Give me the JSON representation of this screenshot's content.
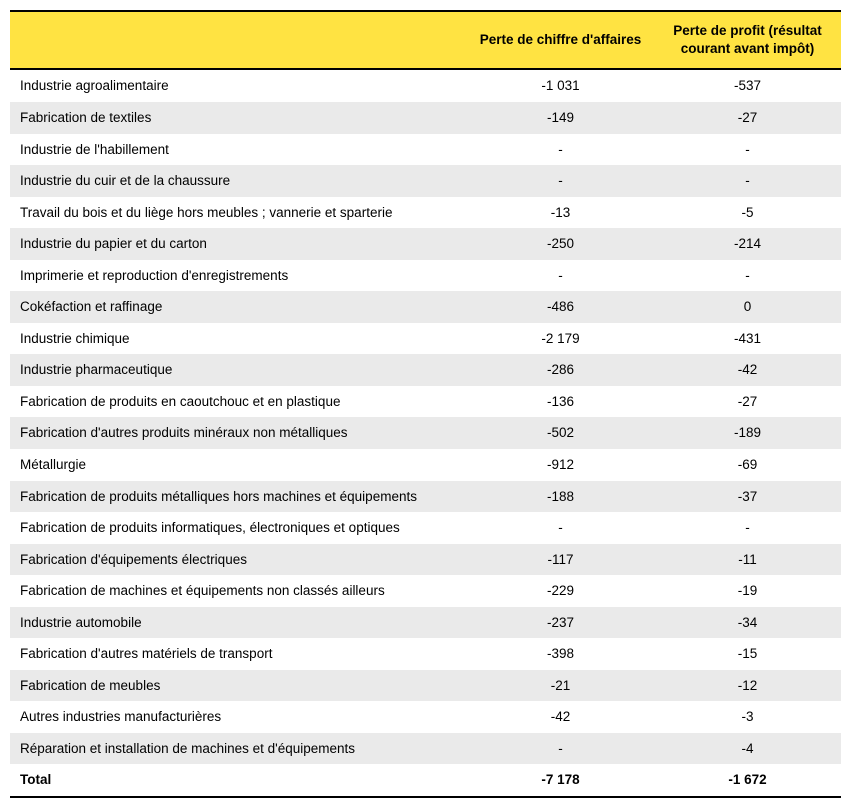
{
  "table": {
    "type": "table",
    "header_bg": "#ffe342",
    "alt_row_bg": "#eaeaea",
    "border_color": "#000000",
    "font_family": "Arial",
    "font_size_pt": 10,
    "columns": [
      {
        "key": "label",
        "header": "",
        "align": "left",
        "width_pct": 55
      },
      {
        "key": "perte_ca",
        "header": "Perte de chiffre d'affaires",
        "align": "center",
        "width_pct": 22.5
      },
      {
        "key": "perte_profit",
        "header": "Perte de profit\n(résultat courant\navant impôt)",
        "align": "center",
        "width_pct": 22.5
      }
    ],
    "rows": [
      {
        "label": "Industrie agroalimentaire",
        "perte_ca": "-1 031",
        "perte_profit": "-537",
        "alt": false
      },
      {
        "label": "Fabrication de textiles",
        "perte_ca": "-149",
        "perte_profit": "-27",
        "alt": true
      },
      {
        "label": "Industrie de l'habillement",
        "perte_ca": "-",
        "perte_profit": "-",
        "alt": false
      },
      {
        "label": "Industrie du cuir et de la chaussure",
        "perte_ca": "-",
        "perte_profit": "-",
        "alt": true
      },
      {
        "label": "Travail du bois et du liège hors meubles ; vannerie et sparterie",
        "perte_ca": "-13",
        "perte_profit": "-5",
        "alt": false
      },
      {
        "label": "Industrie du papier et du carton",
        "perte_ca": "-250",
        "perte_profit": "-214",
        "alt": true
      },
      {
        "label": "Imprimerie et reproduction d'enregistrements",
        "perte_ca": "-",
        "perte_profit": "-",
        "alt": false
      },
      {
        "label": "Cokéfaction et raffinage",
        "perte_ca": "-486",
        "perte_profit": "0",
        "alt": true
      },
      {
        "label": "Industrie chimique",
        "perte_ca": "-2 179",
        "perte_profit": "-431",
        "alt": false
      },
      {
        "label": "Industrie pharmaceutique",
        "perte_ca": "-286",
        "perte_profit": "-42",
        "alt": true
      },
      {
        "label": "Fabrication de produits en caoutchouc et en plastique",
        "perte_ca": "-136",
        "perte_profit": "-27",
        "alt": false
      },
      {
        "label": "Fabrication d'autres produits minéraux non métalliques",
        "perte_ca": "-502",
        "perte_profit": "-189",
        "alt": true
      },
      {
        "label": "Métallurgie",
        "perte_ca": "-912",
        "perte_profit": "-69",
        "alt": false
      },
      {
        "label": "Fabrication de produits métalliques hors machines et équipements",
        "perte_ca": "-188",
        "perte_profit": "-37",
        "alt": true
      },
      {
        "label": "Fabrication de produits informatiques, électroniques et optiques",
        "perte_ca": "-",
        "perte_profit": "-",
        "alt": false
      },
      {
        "label": "Fabrication d'équipements électriques",
        "perte_ca": "-117",
        "perte_profit": "-11",
        "alt": true
      },
      {
        "label": "Fabrication de machines et équipements non classés ailleurs",
        "perte_ca": "-229",
        "perte_profit": "-19",
        "alt": false
      },
      {
        "label": "Industrie automobile",
        "perte_ca": "-237",
        "perte_profit": "-34",
        "alt": true
      },
      {
        "label": "Fabrication d'autres matériels de transport",
        "perte_ca": "-398",
        "perte_profit": "-15",
        "alt": false
      },
      {
        "label": "Fabrication de meubles",
        "perte_ca": "-21",
        "perte_profit": "-12",
        "alt": true
      },
      {
        "label": "Autres industries manufacturières",
        "perte_ca": "-42",
        "perte_profit": "-3",
        "alt": false
      },
      {
        "label": "Réparation et installation de machines et d'équipements",
        "perte_ca": "-",
        "perte_profit": "-4",
        "alt": true
      }
    ],
    "total": {
      "label": "Total",
      "perte_ca": "-7 178",
      "perte_profit": "-1 672"
    }
  }
}
